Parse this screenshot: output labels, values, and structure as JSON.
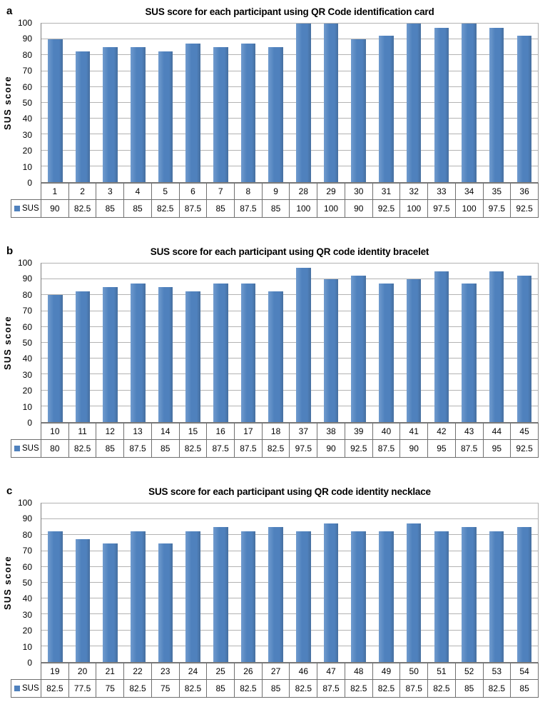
{
  "page": {
    "background": "#ffffff",
    "figure_description": "Three stacked bar charts (panels a, b, c) of SUS scores per participant for three QR code identification methods, each with an attached data table and SUS legend key"
  },
  "colors": {
    "bar": "#4f81bd",
    "gridline": "#b3b3b3",
    "axis": "#7f7f7f",
    "table_border": "#6f6f6f"
  },
  "chart_data": [
    {
      "type": "bar",
      "panel": "a",
      "title": "SUS score for each participant using QR Code identification card",
      "xlabel": "",
      "ylabel": "SUS score",
      "legend": "SUS",
      "legend_position": "table-left",
      "grid": true,
      "ylim": [
        0,
        100
      ],
      "yticks": [
        0,
        10,
        20,
        30,
        40,
        50,
        60,
        70,
        80,
        90,
        100
      ],
      "bar_color": "#4f81bd",
      "categories": [
        "1",
        "2",
        "3",
        "4",
        "5",
        "6",
        "7",
        "8",
        "9",
        "28",
        "29",
        "30",
        "31",
        "32",
        "33",
        "34",
        "35",
        "36"
      ],
      "values": [
        90,
        82.5,
        85,
        85,
        82.5,
        87.5,
        85,
        87.5,
        85,
        100,
        100,
        90,
        92.5,
        100,
        97.5,
        100,
        97.5,
        92.5
      ]
    },
    {
      "type": "bar",
      "panel": "b",
      "title": "SUS score for each participant using QR code identity bracelet",
      "xlabel": "",
      "ylabel": "SUS score",
      "legend": "SUS",
      "legend_position": "table-left",
      "grid": true,
      "ylim": [
        0,
        100
      ],
      "yticks": [
        0,
        10,
        20,
        30,
        40,
        50,
        60,
        70,
        80,
        90,
        100
      ],
      "bar_color": "#4f81bd",
      "categories": [
        "10",
        "11",
        "12",
        "13",
        "14",
        "15",
        "16",
        "17",
        "18",
        "37",
        "38",
        "39",
        "40",
        "41",
        "42",
        "43",
        "44",
        "45"
      ],
      "values": [
        80,
        82.5,
        85,
        87.5,
        85,
        82.5,
        87.5,
        87.5,
        82.5,
        97.5,
        90,
        92.5,
        87.5,
        90,
        95,
        87.5,
        95,
        92.5
      ]
    },
    {
      "type": "bar",
      "panel": "c",
      "title": "SUS score for each participant using QR code identity necklace",
      "xlabel": "",
      "ylabel": "SUS score",
      "legend": "SUS",
      "legend_position": "table-left",
      "grid": true,
      "ylim": [
        0,
        100
      ],
      "yticks": [
        0,
        10,
        20,
        30,
        40,
        50,
        60,
        70,
        80,
        90,
        100
      ],
      "bar_color": "#4f81bd",
      "categories": [
        "19",
        "20",
        "21",
        "22",
        "23",
        "24",
        "25",
        "26",
        "27",
        "46",
        "47",
        "48",
        "49",
        "50",
        "51",
        "52",
        "53",
        "54"
      ],
      "values": [
        82.5,
        77.5,
        75,
        82.5,
        75,
        82.5,
        85,
        82.5,
        85,
        82.5,
        87.5,
        82.5,
        82.5,
        87.5,
        82.5,
        85,
        82.5,
        85
      ]
    }
  ]
}
